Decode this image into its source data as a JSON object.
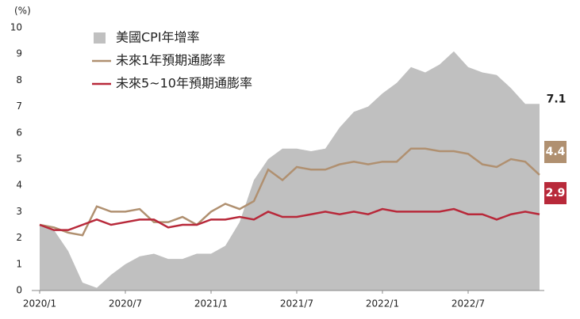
{
  "chart_data": {
    "type": "line",
    "y_label": "(%)",
    "categories": [
      "2020/1",
      null,
      null,
      null,
      null,
      null,
      "2020/7",
      null,
      null,
      null,
      null,
      null,
      "2021/1",
      null,
      null,
      null,
      null,
      null,
      "2021/7",
      null,
      null,
      null,
      null,
      null,
      "2022/1",
      null,
      null,
      null,
      null,
      null,
      "2022/7",
      null,
      null,
      null,
      null,
      null
    ],
    "series": [
      {
        "name": "美國CPI年增率",
        "color": "#c0c0c0",
        "kind": "area",
        "values": [
          2.5,
          2.3,
          1.5,
          0.3,
          0.1,
          0.6,
          1.0,
          1.3,
          1.4,
          1.2,
          1.2,
          1.4,
          1.4,
          1.7,
          2.6,
          4.2,
          5.0,
          5.4,
          5.4,
          5.3,
          5.4,
          6.2,
          6.8,
          7.0,
          7.5,
          7.9,
          8.5,
          8.3,
          8.6,
          9.1,
          8.5,
          8.3,
          8.2,
          7.7,
          7.1,
          7.1
        ]
      },
      {
        "name": "未來1年預期通膨率",
        "color": "#b09070",
        "kind": "line",
        "values": [
          2.5,
          2.4,
          2.2,
          2.1,
          3.2,
          3.0,
          3.0,
          3.1,
          2.6,
          2.6,
          2.8,
          2.5,
          3.0,
          3.3,
          3.1,
          3.4,
          4.6,
          4.2,
          4.7,
          4.6,
          4.6,
          4.8,
          4.9,
          4.8,
          4.9,
          4.9,
          5.4,
          5.4,
          5.3,
          5.3,
          5.2,
          4.8,
          4.7,
          5.0,
          4.9,
          4.4
        ]
      },
      {
        "name": "未來5~10年預期通膨率",
        "color": "#b8293a",
        "kind": "line",
        "values": [
          2.5,
          2.3,
          2.3,
          2.5,
          2.7,
          2.5,
          2.6,
          2.7,
          2.7,
          2.4,
          2.5,
          2.5,
          2.7,
          2.7,
          2.8,
          2.7,
          3.0,
          2.8,
          2.8,
          2.9,
          3.0,
          2.9,
          3.0,
          2.9,
          3.1,
          3.0,
          3.0,
          3.0,
          3.0,
          3.1,
          2.9,
          2.9,
          2.7,
          2.9,
          3.0,
          2.9
        ]
      }
    ],
    "ylim": [
      0,
      10
    ],
    "yticks": [
      0,
      1,
      2,
      3,
      4,
      5,
      6,
      7,
      8,
      9,
      10
    ]
  }
}
